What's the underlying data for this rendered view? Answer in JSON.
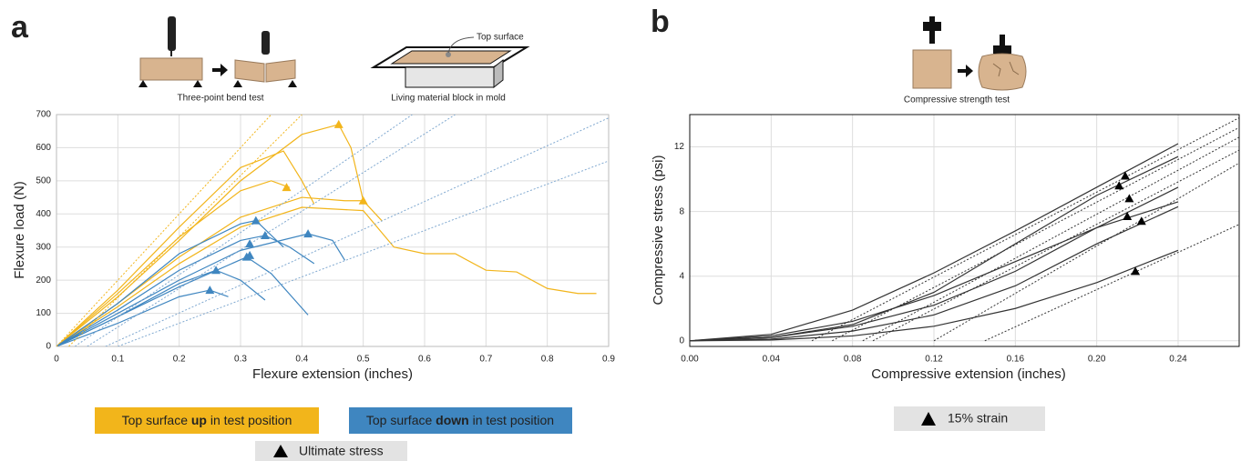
{
  "chart_data": [
    {
      "type": "line",
      "panel": "a",
      "annotations": [
        "Three-point bend test",
        "Living material block in mold",
        "Top surface"
      ],
      "xlabel": "Flexure extension (inches)",
      "ylabel": "Flexure load (N)",
      "xlim": [
        0,
        0.9
      ],
      "ylim": [
        0,
        700
      ],
      "xticks": [
        0,
        0.1,
        0.2,
        0.3,
        0.4,
        0.5,
        0.6,
        0.7,
        0.8,
        0.9
      ],
      "yticks": [
        0,
        100,
        200,
        300,
        400,
        500,
        600,
        700
      ],
      "grid": true,
      "series": [
        {
          "color": "#f2b51b",
          "x": [
            0,
            0.1,
            0.2,
            0.3,
            0.4,
            0.46,
            0.48,
            0.5
          ],
          "values": [
            0,
            150,
            320,
            500,
            640,
            670,
            600,
            440
          ]
        },
        {
          "color": "#f2b51b",
          "x": [
            0,
            0.1,
            0.2,
            0.3,
            0.4,
            0.5,
            0.55,
            0.6,
            0.65,
            0.7,
            0.75,
            0.8,
            0.85,
            0.88
          ],
          "values": [
            0,
            120,
            250,
            360,
            420,
            410,
            300,
            280,
            280,
            230,
            225,
            175,
            160,
            160
          ]
        },
        {
          "color": "#f2b51b",
          "x": [
            0,
            0.1,
            0.2,
            0.3,
            0.37,
            0.4,
            0.42
          ],
          "values": [
            0,
            170,
            360,
            540,
            590,
            500,
            430
          ]
        },
        {
          "color": "#f2b51b",
          "x": [
            0,
            0.1,
            0.2,
            0.3,
            0.35,
            0.38
          ],
          "values": [
            0,
            160,
            330,
            470,
            500,
            480
          ]
        },
        {
          "color": "#f2b51b",
          "x": [
            0,
            0.1,
            0.2,
            0.3,
            0.4,
            0.47,
            0.5,
            0.53
          ],
          "values": [
            0,
            130,
            270,
            390,
            450,
            440,
            440,
            380
          ]
        },
        {
          "color": "#3f86c0",
          "x": [
            0,
            0.1,
            0.2,
            0.25,
            0.28
          ],
          "values": [
            0,
            70,
            150,
            170,
            150
          ]
        },
        {
          "color": "#3f86c0",
          "x": [
            0,
            0.1,
            0.2,
            0.26,
            0.3,
            0.34
          ],
          "values": [
            0,
            90,
            190,
            230,
            200,
            140
          ]
        },
        {
          "color": "#3f86c0",
          "x": [
            0,
            0.1,
            0.2,
            0.3,
            0.325,
            0.37
          ],
          "values": [
            0,
            130,
            280,
            370,
            380,
            300
          ]
        },
        {
          "color": "#3f86c0",
          "x": [
            0,
            0.1,
            0.2,
            0.3,
            0.34,
            0.38,
            0.42
          ],
          "values": [
            0,
            110,
            230,
            320,
            335,
            300,
            250
          ]
        },
        {
          "color": "#3f86c0",
          "x": [
            0,
            0.1,
            0.2,
            0.3,
            0.41,
            0.45,
            0.47
          ],
          "values": [
            0,
            100,
            200,
            290,
            340,
            320,
            260
          ]
        },
        {
          "color": "#3f86c0",
          "x": [
            0,
            0.1,
            0.2,
            0.31,
            0.35,
            0.41
          ],
          "values": [
            0,
            90,
            180,
            270,
            220,
            95
          ]
        },
        {
          "color": "#f2b51b",
          "dash": true,
          "x": [
            0,
            0.35
          ],
          "values": [
            0,
            700
          ]
        },
        {
          "color": "#f2b51b",
          "dash": true,
          "x": [
            0.02,
            0.4
          ],
          "values": [
            0,
            700
          ]
        },
        {
          "color": "#7fa8d0",
          "dash": true,
          "x": [
            0.03,
            0.58
          ],
          "values": [
            0,
            700
          ]
        },
        {
          "color": "#7fa8d0",
          "dash": true,
          "x": [
            0.05,
            0.65
          ],
          "values": [
            0,
            700
          ]
        },
        {
          "color": "#7fa8d0",
          "dash": true,
          "x": [
            0.08,
            0.9
          ],
          "values": [
            0,
            690
          ]
        },
        {
          "color": "#7fa8d0",
          "dash": true,
          "x": [
            0.1,
            0.9
          ],
          "values": [
            0,
            560
          ]
        }
      ],
      "points": [
        {
          "color": "#f2b51b",
          "x": [
            0.46,
            0.375,
            0.5
          ],
          "values": [
            670,
            480,
            440
          ]
        },
        {
          "color": "#3f86c0",
          "x": [
            0.25,
            0.26,
            0.31,
            0.315,
            0.315,
            0.325,
            0.34,
            0.41
          ],
          "values": [
            170,
            230,
            270,
            275,
            310,
            380,
            335,
            340
          ]
        }
      ],
      "legend": [
        {
          "text": [
            "Top surface ",
            "up",
            " in test position"
          ],
          "color": "#f2b51b"
        },
        {
          "text": [
            "Top surface ",
            "down",
            " in test position"
          ],
          "color": "#3f86c0"
        }
      ],
      "marker_legend": "Ultimate stress"
    },
    {
      "type": "line",
      "panel": "b",
      "annotations": [
        "Compressive strength test"
      ],
      "xlabel": "Compressive extension (inches)",
      "ylabel": "Compressive stress (psi)",
      "xlim": [
        0,
        0.27
      ],
      "ylim": [
        -0.35,
        14
      ],
      "xticks": [
        {
          "value": 0,
          "label": "0.00"
        },
        {
          "value": 0.04,
          "label": "0.04"
        },
        {
          "value": 0.08,
          "label": "0.08"
        },
        {
          "value": 0.12,
          "label": "0.12"
        },
        {
          "value": 0.16,
          "label": "0.16"
        },
        {
          "value": 0.2,
          "label": "0.20"
        },
        {
          "value": 0.24,
          "label": "0.24"
        }
      ],
      "yticks": [
        0,
        4,
        8,
        12
      ],
      "grid": true,
      "series": [
        {
          "color": "#333333",
          "x": [
            0,
            0.04,
            0.08,
            0.12,
            0.16,
            0.2,
            0.24
          ],
          "values": [
            0,
            0.4,
            1.9,
            4.2,
            6.8,
            9.5,
            12.2
          ]
        },
        {
          "color": "#333333",
          "x": [
            0,
            0.04,
            0.08,
            0.12,
            0.16,
            0.2,
            0.24
          ],
          "values": [
            0,
            0.2,
            1.0,
            3.0,
            6.0,
            9.0,
            11.4
          ]
        },
        {
          "color": "#333333",
          "x": [
            0,
            0.04,
            0.08,
            0.12,
            0.16,
            0.2,
            0.24
          ],
          "values": [
            0,
            0.2,
            0.9,
            2.2,
            4.3,
            7.0,
            9.5
          ]
        },
        {
          "color": "#333333",
          "x": [
            0,
            0.04,
            0.08,
            0.12,
            0.16,
            0.2,
            0.24
          ],
          "values": [
            0,
            0.3,
            1.2,
            2.8,
            4.9,
            7.0,
            8.6
          ]
        },
        {
          "color": "#333333",
          "x": [
            0,
            0.04,
            0.08,
            0.12,
            0.16,
            0.2,
            0.24
          ],
          "values": [
            0,
            0.1,
            0.6,
            1.6,
            3.4,
            6.0,
            8.3
          ]
        },
        {
          "color": "#333333",
          "x": [
            0,
            0.04,
            0.08,
            0.12,
            0.16,
            0.2,
            0.24
          ],
          "values": [
            0,
            0.05,
            0.3,
            0.9,
            2.0,
            3.6,
            5.6
          ]
        },
        {
          "color": "#333333",
          "dash": true,
          "x": [
            0.06,
            0.27
          ],
          "values": [
            0,
            13.8
          ]
        },
        {
          "color": "#333333",
          "dash": true,
          "x": [
            0.07,
            0.27
          ],
          "values": [
            0,
            13.2
          ]
        },
        {
          "color": "#333333",
          "dash": true,
          "x": [
            0.085,
            0.27
          ],
          "values": [
            0,
            12.6
          ]
        },
        {
          "color": "#333333",
          "dash": true,
          "x": [
            0.09,
            0.27
          ],
          "values": [
            0,
            11.8
          ]
        },
        {
          "color": "#333333",
          "dash": true,
          "x": [
            0.12,
            0.27
          ],
          "values": [
            0,
            11.0
          ]
        },
        {
          "color": "#333333",
          "dash": true,
          "x": [
            0.145,
            0.27
          ],
          "values": [
            0,
            7.2
          ]
        }
      ],
      "points": [
        {
          "color": "#000000",
          "x": [
            0.214,
            0.211,
            0.216,
            0.215,
            0.222,
            0.219
          ],
          "values": [
            10.2,
            9.6,
            8.8,
            7.7,
            7.4,
            4.3
          ]
        }
      ],
      "marker_legend": "15% strain"
    }
  ]
}
